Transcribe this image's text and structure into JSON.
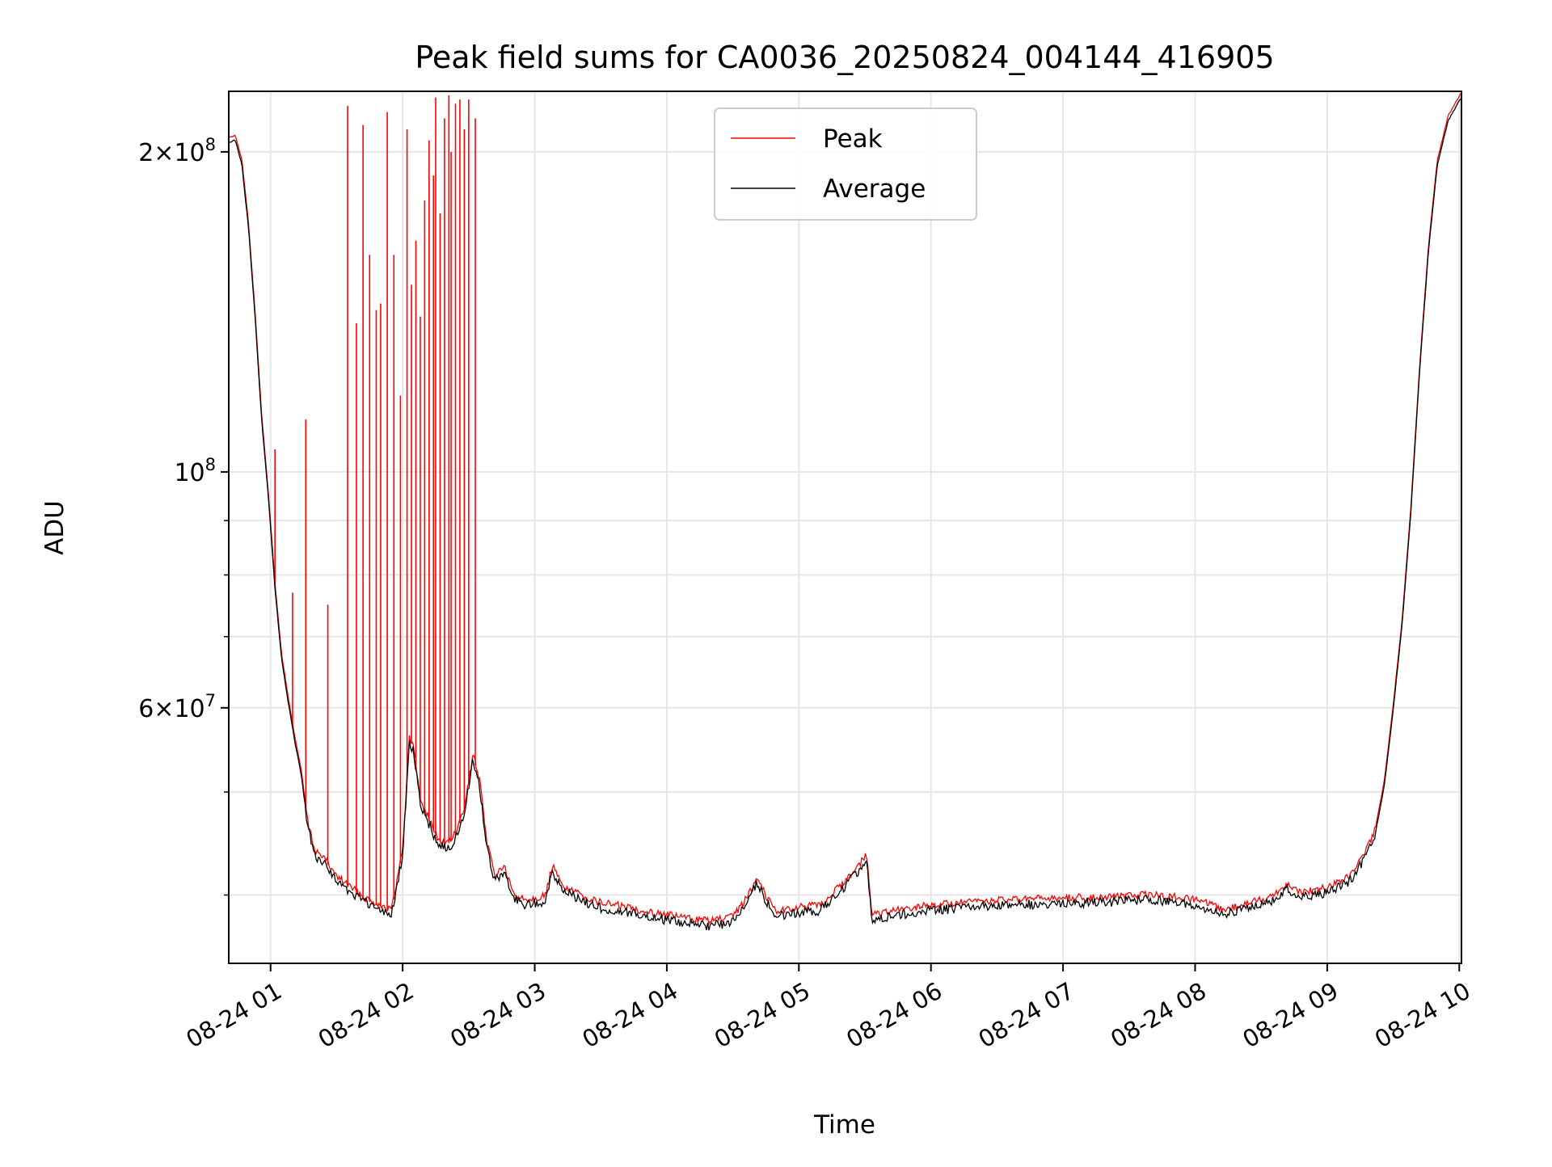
{
  "chart_data": {
    "type": "line",
    "title": "Peak field sums for CA0036_20250824_004144_416905",
    "xlabel": "Time",
    "ylabel": "ADU",
    "yscale": "log",
    "grid": true,
    "legend_position": "top-center",
    "xlim": [
      "2025-08-24 00:41",
      "2025-08-24 10:01"
    ],
    "ylim": [
      34500000,
      228000000
    ],
    "x_ticks": [
      {
        "t": "2025-08-24 01:00",
        "label": "08-24 01"
      },
      {
        "t": "2025-08-24 02:00",
        "label": "08-24 02"
      },
      {
        "t": "2025-08-24 03:00",
        "label": "08-24 03"
      },
      {
        "t": "2025-08-24 04:00",
        "label": "08-24 04"
      },
      {
        "t": "2025-08-24 05:00",
        "label": "08-24 05"
      },
      {
        "t": "2025-08-24 06:00",
        "label": "08-24 06"
      },
      {
        "t": "2025-08-24 07:00",
        "label": "08-24 07"
      },
      {
        "t": "2025-08-24 08:00",
        "label": "08-24 08"
      },
      {
        "t": "2025-08-24 09:00",
        "label": "08-24 09"
      },
      {
        "t": "2025-08-24 10:00",
        "label": "08-24 10"
      }
    ],
    "y_ticks_major": [
      {
        "v": 200000000,
        "label_base": "2×10",
        "label_exp": "8"
      },
      {
        "v": 100000000,
        "label_base": "10",
        "label_exp": "8"
      },
      {
        "v": 60000000,
        "label_base": "6×10",
        "label_exp": "7"
      }
    ],
    "y_ticks_minor": [
      40000000,
      50000000,
      70000000,
      80000000,
      90000000
    ],
    "series": [
      {
        "name": "Average",
        "color": "#000000",
        "points": [
          [
            "2025-08-24 00:41",
            205000000
          ],
          [
            "2025-08-24 00:44",
            206000000
          ],
          [
            "2025-08-24 00:47",
            195000000
          ],
          [
            "2025-08-24 00:50",
            170000000
          ],
          [
            "2025-08-24 00:53",
            140000000
          ],
          [
            "2025-08-24 00:56",
            112000000
          ],
          [
            "2025-08-24 00:59",
            95000000
          ],
          [
            "2025-08-24 01:02",
            78000000
          ],
          [
            "2025-08-24 01:05",
            67000000
          ],
          [
            "2025-08-24 01:08",
            61000000
          ],
          [
            "2025-08-24 01:11",
            56000000
          ],
          [
            "2025-08-24 01:14",
            52000000
          ],
          [
            "2025-08-24 01:17",
            46500000
          ],
          [
            "2025-08-24 01:20",
            44000000
          ],
          [
            "2025-08-24 01:25",
            43000000
          ],
          [
            "2025-08-24 01:30",
            41500000
          ],
          [
            "2025-08-24 01:35",
            40800000
          ],
          [
            "2025-08-24 01:40",
            40000000
          ],
          [
            "2025-08-24 01:45",
            39400000
          ],
          [
            "2025-08-24 01:50",
            39000000
          ],
          [
            "2025-08-24 01:55",
            38600000
          ],
          [
            "2025-08-24 02:00",
            44000000
          ],
          [
            "2025-08-24 02:03",
            56000000
          ],
          [
            "2025-08-24 02:05",
            55000000
          ],
          [
            "2025-08-24 02:08",
            49000000
          ],
          [
            "2025-08-24 02:12",
            47000000
          ],
          [
            "2025-08-24 02:16",
            45000000
          ],
          [
            "2025-08-24 02:20",
            44500000
          ],
          [
            "2025-08-24 02:24",
            45500000
          ],
          [
            "2025-08-24 02:28",
            48000000
          ],
          [
            "2025-08-24 02:32",
            54000000
          ],
          [
            "2025-08-24 02:35",
            51000000
          ],
          [
            "2025-08-24 02:38",
            45000000
          ],
          [
            "2025-08-24 02:42",
            41500000
          ],
          [
            "2025-08-24 02:46",
            42500000
          ],
          [
            "2025-08-24 02:50",
            40000000
          ],
          [
            "2025-08-24 02:55",
            39500000
          ],
          [
            "2025-08-24 03:00",
            39600000
          ],
          [
            "2025-08-24 03:05",
            39800000
          ],
          [
            "2025-08-24 03:08",
            42500000
          ],
          [
            "2025-08-24 03:12",
            40800000
          ],
          [
            "2025-08-24 03:20",
            39900000
          ],
          [
            "2025-08-24 03:30",
            39200000
          ],
          [
            "2025-08-24 03:40",
            38900000
          ],
          [
            "2025-08-24 03:50",
            38500000
          ],
          [
            "2025-08-24 04:00",
            38200000
          ],
          [
            "2025-08-24 04:10",
            37900000
          ],
          [
            "2025-08-24 04:20",
            37700000
          ],
          [
            "2025-08-24 04:30",
            38000000
          ],
          [
            "2025-08-24 04:36",
            39500000
          ],
          [
            "2025-08-24 04:41",
            41500000
          ],
          [
            "2025-08-24 04:45",
            39800000
          ],
          [
            "2025-08-24 04:50",
            38500000
          ],
          [
            "2025-08-24 05:00",
            38800000
          ],
          [
            "2025-08-24 05:10",
            39000000
          ],
          [
            "2025-08-24 05:18",
            40500000
          ],
          [
            "2025-08-24 05:25",
            42000000
          ],
          [
            "2025-08-24 05:31",
            43500000
          ],
          [
            "2025-08-24 05:33",
            38200000
          ],
          [
            "2025-08-24 05:40",
            38400000
          ],
          [
            "2025-08-24 06:00",
            39000000
          ],
          [
            "2025-08-24 06:30",
            39400000
          ],
          [
            "2025-08-24 07:00",
            39600000
          ],
          [
            "2025-08-24 07:20",
            39700000
          ],
          [
            "2025-08-24 07:40",
            39900000
          ],
          [
            "2025-08-24 08:00",
            39500000
          ],
          [
            "2025-08-24 08:13",
            38600000
          ],
          [
            "2025-08-24 08:25",
            39200000
          ],
          [
            "2025-08-24 08:35",
            39800000
          ],
          [
            "2025-08-24 08:42",
            40800000
          ],
          [
            "2025-08-24 08:48",
            40100000
          ],
          [
            "2025-08-24 09:00",
            40500000
          ],
          [
            "2025-08-24 09:10",
            41500000
          ],
          [
            "2025-08-24 09:17",
            43500000
          ],
          [
            "2025-08-24 09:22",
            46000000
          ],
          [
            "2025-08-24 09:26",
            51000000
          ],
          [
            "2025-08-24 09:30",
            60000000
          ],
          [
            "2025-08-24 09:34",
            72000000
          ],
          [
            "2025-08-24 09:38",
            92000000
          ],
          [
            "2025-08-24 09:42",
            125000000
          ],
          [
            "2025-08-24 09:46",
            162000000
          ],
          [
            "2025-08-24 09:50",
            195000000
          ],
          [
            "2025-08-24 09:55",
            215000000
          ],
          [
            "2025-08-24 10:01",
            226000000
          ]
        ]
      },
      {
        "name": "Peak",
        "color": "#ff0000",
        "spikes": [
          [
            "2025-08-24 00:55",
            121000000
          ],
          [
            "2025-08-24 01:02",
            105000000
          ],
          [
            "2025-08-24 01:10",
            77000000
          ],
          [
            "2025-08-24 01:16",
            112000000
          ],
          [
            "2025-08-24 01:26",
            75000000
          ],
          [
            "2025-08-24 01:35",
            221000000
          ],
          [
            "2025-08-24 01:39",
            138000000
          ],
          [
            "2025-08-24 01:42",
            212000000
          ],
          [
            "2025-08-24 01:45",
            160000000
          ],
          [
            "2025-08-24 01:48",
            142000000
          ],
          [
            "2025-08-24 01:50",
            144000000
          ],
          [
            "2025-08-24 01:53",
            218000000
          ],
          [
            "2025-08-24 01:56",
            160000000
          ],
          [
            "2025-08-24 01:59",
            118000000
          ],
          [
            "2025-08-24 02:02",
            210000000
          ],
          [
            "2025-08-24 02:04",
            150000000
          ],
          [
            "2025-08-24 02:06",
            165000000
          ],
          [
            "2025-08-24 02:08",
            140000000
          ],
          [
            "2025-08-24 02:10",
            180000000
          ],
          [
            "2025-08-24 02:12",
            205000000
          ],
          [
            "2025-08-24 02:14",
            190000000
          ],
          [
            "2025-08-24 02:15",
            225000000
          ],
          [
            "2025-08-24 02:17",
            175000000
          ],
          [
            "2025-08-24 02:19",
            215000000
          ],
          [
            "2025-08-24 02:21",
            226000000
          ],
          [
            "2025-08-24 02:22",
            200000000
          ],
          [
            "2025-08-24 02:24",
            222000000
          ],
          [
            "2025-08-24 02:26",
            224000000
          ],
          [
            "2025-08-24 02:28",
            210000000
          ],
          [
            "2025-08-24 02:30",
            224000000
          ],
          [
            "2025-08-24 02:33",
            215000000
          ]
        ]
      }
    ]
  }
}
